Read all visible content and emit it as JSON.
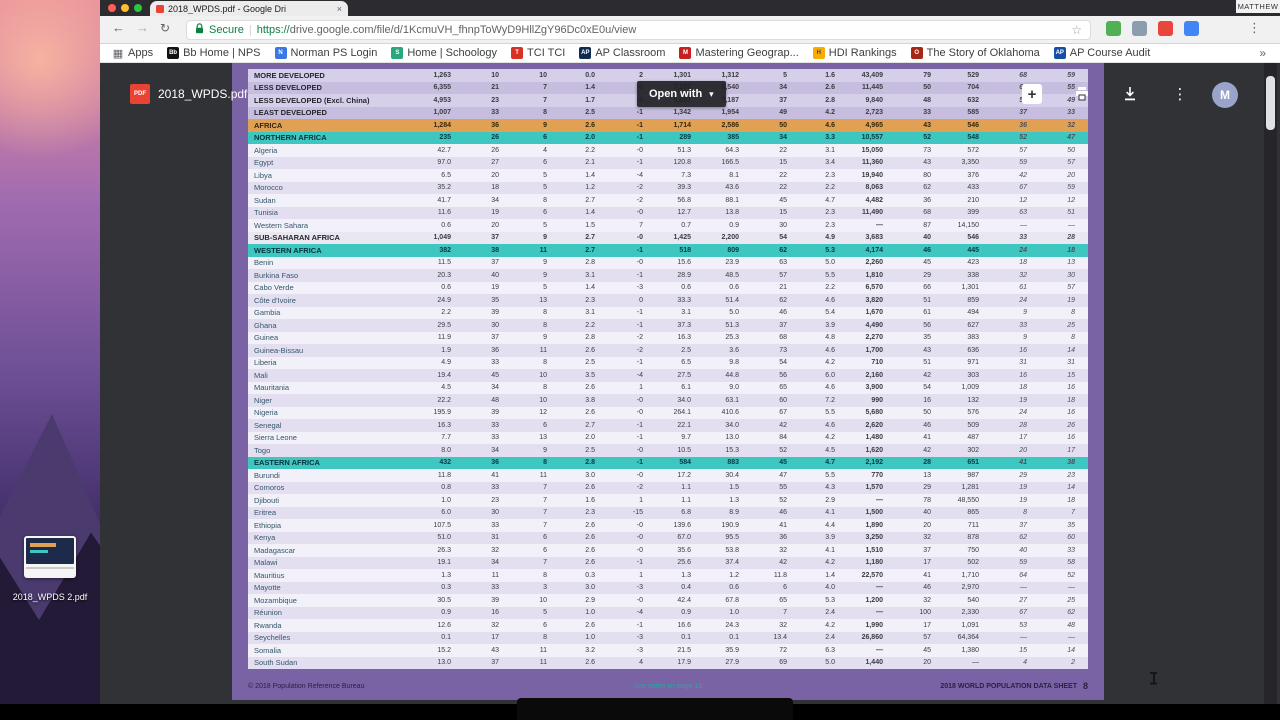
{
  "menubar": {
    "user": "MATTHEW"
  },
  "browser": {
    "tab": {
      "title": "2018_WPDS.pdf - Google Dri",
      "close_glyph": "×"
    },
    "nav": {
      "back": "←",
      "forward": "→",
      "reload": "↻"
    },
    "address": {
      "secure_label": "Secure",
      "separator": "|",
      "url_scheme": "https://",
      "url": "drive.google.com/file/d/1KcmuVH_fhnpToWyD9HllZgY96Dc0xE0u/view",
      "star_glyph": "☆"
    },
    "extensions": [
      {
        "name": "extension-icon-green",
        "color": "#50b154"
      },
      {
        "name": "extension-icon-gray",
        "color": "#8d9db0"
      },
      {
        "name": "extension-icon-red",
        "color": "#e8453c"
      },
      {
        "name": "extension-icon-blue",
        "color": "#4285f4"
      }
    ],
    "menu_dots": "⋮",
    "bookmarks": [
      {
        "label": "Apps",
        "icon": "apps-grid-icon",
        "color": "transparent",
        "glyph": "▦",
        "fg": "#5f6368"
      },
      {
        "label": "Bb Home | NPS",
        "icon": "blackboard-icon",
        "color": "#111111",
        "glyph": "Bb",
        "fg": "#ffffff"
      },
      {
        "label": "Norman PS Login",
        "icon": "norman-ps-icon",
        "color": "#3b78e7",
        "glyph": "N",
        "fg": "#ffffff"
      },
      {
        "label": "Home | Schoology",
        "icon": "schoology-icon",
        "color": "#29a87c",
        "glyph": "S",
        "fg": "#ffffff"
      },
      {
        "label": "TCI TCI",
        "icon": "tci-icon",
        "color": "#d93025",
        "glyph": "T",
        "fg": "#ffffff"
      },
      {
        "label": "AP Classroom",
        "icon": "ap-classroom-icon",
        "color": "#0f2d52",
        "glyph": "AP",
        "fg": "#ffffff"
      },
      {
        "label": "Mastering Geograp...",
        "icon": "mastering-geography-icon",
        "color": "#c5221f",
        "glyph": "M",
        "fg": "#ffffff"
      },
      {
        "label": "HDI Rankings",
        "icon": "hdi-rankings-icon",
        "color": "#f9ab00",
        "glyph": "H",
        "fg": "#174ea6"
      },
      {
        "label": "The Story of Oklahoma",
        "icon": "story-of-oklahoma-icon",
        "color": "#a52714",
        "glyph": "O",
        "fg": "#ffffff"
      },
      {
        "label": "AP Course Audit",
        "icon": "ap-course-audit-icon",
        "color": "#174ea6",
        "glyph": "AP",
        "fg": "#ffffff"
      }
    ],
    "overflow_chevron": "»"
  },
  "viewer": {
    "filename": "2018_WPDS.pdf",
    "pdf_badge": "PDF",
    "open_with_label": "Open with",
    "open_with_caret": "▾",
    "more_dots": "⋮",
    "avatar_letter": "M",
    "icons": [
      "add-box-icon",
      "print-icon",
      "download-icon",
      "more-options-icon"
    ]
  },
  "document": {
    "footer": {
      "left": "© 2018 Population Reference Bureau",
      "center": "See notes on page 18",
      "right": "2018 WORLD POPULATION DATA SHEET",
      "page": "8"
    },
    "rows": [
      {
        "name": "MORE DEVELOPED",
        "style": "dev",
        "values": [
          "1,263",
          "10",
          "10",
          "0.0",
          "2",
          "1,301",
          "1,312",
          "5",
          "1.6",
          "43,409",
          "79",
          "529",
          "68",
          "59"
        ]
      },
      {
        "name": "LESS DEVELOPED",
        "style": "dev",
        "values": [
          "6,355",
          "21",
          "7",
          "1.4",
          "-0",
          "7,257",
          "8,540",
          "34",
          "2.6",
          "11,445",
          "50",
          "704",
          "62",
          "55"
        ]
      },
      {
        "name": "LESS DEVELOPED (Excl. China)",
        "style": "dev",
        "values": [
          "4,953",
          "23",
          "7",
          "1.7",
          "-0",
          "5,887",
          "7,187",
          "37",
          "2.8",
          "9,840",
          "48",
          "632",
          "56",
          "49"
        ]
      },
      {
        "name": "LEAST DEVELOPED",
        "style": "dev",
        "values": [
          "1,007",
          "33",
          "8",
          "2.5",
          "-1",
          "1,342",
          "1,954",
          "49",
          "4.2",
          "2,723",
          "33",
          "585",
          "37",
          "33"
        ]
      },
      {
        "name": "AFRICA",
        "style": "africa",
        "values": [
          "1,284",
          "36",
          "9",
          "2.6",
          "-1",
          "1,714",
          "2,586",
          "50",
          "4.6",
          "4,965",
          "43",
          "546",
          "36",
          "32"
        ]
      },
      {
        "name": "NORTHERN AFRICA",
        "style": "region",
        "values": [
          "235",
          "26",
          "6",
          "2.0",
          "-1",
          "289",
          "385",
          "34",
          "3.3",
          "10,557",
          "52",
          "548",
          "52",
          "47"
        ]
      },
      {
        "name": "Algeria",
        "values": [
          "42.7",
          "26",
          "4",
          "2.2",
          "-0",
          "51.3",
          "64.3",
          "22",
          "3.1",
          "15,050",
          "73",
          "572",
          "57",
          "50"
        ]
      },
      {
        "name": "Egypt",
        "values": [
          "97.0",
          "27",
          "6",
          "2.1",
          "-1",
          "120.8",
          "166.5",
          "15",
          "3.4",
          "11,360",
          "43",
          "3,350",
          "59",
          "57"
        ]
      },
      {
        "name": "Libya",
        "values": [
          "6.5",
          "20",
          "5",
          "1.4",
          "-4",
          "7.3",
          "8.1",
          "22",
          "2.3",
          "19,940",
          "80",
          "376",
          "42",
          "20"
        ]
      },
      {
        "name": "Morocco",
        "values": [
          "35.2",
          "18",
          "5",
          "1.2",
          "-2",
          "39.3",
          "43.6",
          "22",
          "2.2",
          "8,063",
          "62",
          "433",
          "67",
          "59"
        ]
      },
      {
        "name": "Sudan",
        "values": [
          "41.7",
          "34",
          "8",
          "2.7",
          "-2",
          "56.8",
          "88.1",
          "45",
          "4.7",
          "4,482",
          "36",
          "210",
          "12",
          "12"
        ]
      },
      {
        "name": "Tunisia",
        "values": [
          "11.6",
          "19",
          "6",
          "1.4",
          "-0",
          "12.7",
          "13.8",
          "15",
          "2.3",
          "11,490",
          "68",
          "399",
          "63",
          "51"
        ]
      },
      {
        "name": "Western Sahara",
        "values": [
          "0.6",
          "20",
          "5",
          "1.5",
          "7",
          "0.7",
          "0.9",
          "30",
          "2.3",
          "—",
          "87",
          "14,150",
          "—",
          "—"
        ]
      },
      {
        "name": "SUB-SAHARAN AFRICA",
        "style": "subsah",
        "values": [
          "1,049",
          "37",
          "9",
          "2.7",
          "-0",
          "1,425",
          "2,200",
          "54",
          "4.9",
          "3,683",
          "40",
          "546",
          "33",
          "28"
        ]
      },
      {
        "name": "WESTERN AFRICA",
        "style": "region",
        "values": [
          "382",
          "38",
          "11",
          "2.7",
          "-1",
          "518",
          "809",
          "62",
          "5.3",
          "4,174",
          "46",
          "445",
          "24",
          "18"
        ]
      },
      {
        "name": "Benin",
        "values": [
          "11.5",
          "37",
          "9",
          "2.8",
          "-0",
          "15.6",
          "23.9",
          "63",
          "5.0",
          "2,260",
          "45",
          "423",
          "18",
          "13"
        ]
      },
      {
        "name": "Burkina Faso",
        "values": [
          "20.3",
          "40",
          "9",
          "3.1",
          "-1",
          "28.9",
          "48.5",
          "57",
          "5.5",
          "1,810",
          "29",
          "338",
          "32",
          "30"
        ]
      },
      {
        "name": "Cabo Verde",
        "values": [
          "0.6",
          "19",
          "5",
          "1.4",
          "-3",
          "0.6",
          "0.6",
          "21",
          "2.2",
          "6,570",
          "66",
          "1,301",
          "61",
          "57"
        ]
      },
      {
        "name": "Côte d'Ivoire",
        "values": [
          "24.9",
          "35",
          "13",
          "2.3",
          "0",
          "33.3",
          "51.4",
          "62",
          "4.6",
          "3,820",
          "51",
          "859",
          "24",
          "19"
        ]
      },
      {
        "name": "Gambia",
        "values": [
          "2.2",
          "39",
          "8",
          "3.1",
          "-1",
          "3.1",
          "5.0",
          "46",
          "5.4",
          "1,670",
          "61",
          "494",
          "9",
          "8"
        ]
      },
      {
        "name": "Ghana",
        "values": [
          "29.5",
          "30",
          "8",
          "2.2",
          "-1",
          "37.3",
          "51.3",
          "37",
          "3.9",
          "4,490",
          "56",
          "627",
          "33",
          "25"
        ]
      },
      {
        "name": "Guinea",
        "values": [
          "11.9",
          "37",
          "9",
          "2.8",
          "-2",
          "16.3",
          "25.3",
          "68",
          "4.8",
          "2,270",
          "35",
          "383",
          "9",
          "8"
        ]
      },
      {
        "name": "Guinea-Bissau",
        "values": [
          "1.9",
          "36",
          "11",
          "2.6",
          "-2",
          "2.5",
          "3.6",
          "73",
          "4.6",
          "1,700",
          "43",
          "636",
          "16",
          "14"
        ]
      },
      {
        "name": "Liberia",
        "values": [
          "4.9",
          "33",
          "8",
          "2.5",
          "-1",
          "6.5",
          "9.8",
          "54",
          "4.2",
          "710",
          "51",
          "971",
          "31",
          "31"
        ]
      },
      {
        "name": "Mali",
        "values": [
          "19.4",
          "45",
          "10",
          "3.5",
          "-4",
          "27.5",
          "44.8",
          "56",
          "6.0",
          "2,160",
          "42",
          "303",
          "16",
          "15"
        ]
      },
      {
        "name": "Mauritania",
        "values": [
          "4.5",
          "34",
          "8",
          "2.6",
          "1",
          "6.1",
          "9.0",
          "65",
          "4.6",
          "3,900",
          "54",
          "1,009",
          "18",
          "16"
        ]
      },
      {
        "name": "Niger",
        "values": [
          "22.2",
          "48",
          "10",
          "3.8",
          "-0",
          "34.0",
          "63.1",
          "60",
          "7.2",
          "990",
          "16",
          "132",
          "19",
          "18"
        ]
      },
      {
        "name": "Nigeria",
        "values": [
          "195.9",
          "39",
          "12",
          "2.6",
          "-0",
          "264.1",
          "410.6",
          "67",
          "5.5",
          "5,680",
          "50",
          "576",
          "24",
          "16"
        ]
      },
      {
        "name": "Senegal",
        "values": [
          "16.3",
          "33",
          "6",
          "2.7",
          "-1",
          "22.1",
          "34.0",
          "42",
          "4.6",
          "2,620",
          "46",
          "509",
          "28",
          "26"
        ]
      },
      {
        "name": "Sierra Leone",
        "values": [
          "7.7",
          "33",
          "13",
          "2.0",
          "-1",
          "9.7",
          "13.0",
          "84",
          "4.2",
          "1,480",
          "41",
          "487",
          "17",
          "16"
        ]
      },
      {
        "name": "Togo",
        "values": [
          "8.0",
          "34",
          "9",
          "2.5",
          "-0",
          "10.5",
          "15.3",
          "52",
          "4.5",
          "1,620",
          "42",
          "302",
          "20",
          "17"
        ]
      },
      {
        "name": "EASTERN AFRICA",
        "style": "region",
        "values": [
          "432",
          "36",
          "8",
          "2.8",
          "-1",
          "584",
          "883",
          "45",
          "4.7",
          "2,192",
          "28",
          "651",
          "41",
          "38"
        ]
      },
      {
        "name": "Burundi",
        "values": [
          "11.8",
          "41",
          "11",
          "3.0",
          "-0",
          "17.2",
          "30.4",
          "47",
          "5.5",
          "770",
          "13",
          "987",
          "29",
          "23"
        ]
      },
      {
        "name": "Comoros",
        "values": [
          "0.8",
          "33",
          "7",
          "2.6",
          "-2",
          "1.1",
          "1.5",
          "55",
          "4.3",
          "1,570",
          "29",
          "1,281",
          "19",
          "14"
        ]
      },
      {
        "name": "Djibouti",
        "values": [
          "1.0",
          "23",
          "7",
          "1.6",
          "1",
          "1.1",
          "1.3",
          "52",
          "2.9",
          "—",
          "78",
          "48,550",
          "19",
          "18"
        ]
      },
      {
        "name": "Eritrea",
        "values": [
          "6.0",
          "30",
          "7",
          "2.3",
          "-15",
          "6.8",
          "8.9",
          "46",
          "4.1",
          "1,500",
          "40",
          "865",
          "8",
          "7"
        ]
      },
      {
        "name": "Ethiopia",
        "values": [
          "107.5",
          "33",
          "7",
          "2.6",
          "-0",
          "139.6",
          "190.9",
          "41",
          "4.4",
          "1,890",
          "20",
          "711",
          "37",
          "35"
        ]
      },
      {
        "name": "Kenya",
        "values": [
          "51.0",
          "31",
          "6",
          "2.6",
          "-0",
          "67.0",
          "95.5",
          "36",
          "3.9",
          "3,250",
          "32",
          "878",
          "62",
          "60"
        ]
      },
      {
        "name": "Madagascar",
        "values": [
          "26.3",
          "32",
          "6",
          "2.6",
          "-0",
          "35.6",
          "53.8",
          "32",
          "4.1",
          "1,510",
          "37",
          "750",
          "40",
          "33"
        ]
      },
      {
        "name": "Malawi",
        "values": [
          "19.1",
          "34",
          "7",
          "2.6",
          "-1",
          "25.6",
          "37.4",
          "42",
          "4.2",
          "1,180",
          "17",
          "502",
          "59",
          "58"
        ]
      },
      {
        "name": "Mauritius",
        "values": [
          "1.3",
          "11",
          "8",
          "0.3",
          "1",
          "1.3",
          "1.2",
          "11.8",
          "1.4",
          "22,570",
          "41",
          "1,710",
          "64",
          "52"
        ]
      },
      {
        "name": "Mayotte",
        "values": [
          "0.3",
          "33",
          "3",
          "3.0",
          "-3",
          "0.4",
          "0.6",
          "6",
          "4.0",
          "—",
          "46",
          "2,970",
          "—",
          "—"
        ]
      },
      {
        "name": "Mozambique",
        "values": [
          "30.5",
          "39",
          "10",
          "2.9",
          "-0",
          "42.4",
          "67.8",
          "65",
          "5.3",
          "1,200",
          "32",
          "540",
          "27",
          "25"
        ]
      },
      {
        "name": "Réunion",
        "values": [
          "0.9",
          "16",
          "5",
          "1.0",
          "-4",
          "0.9",
          "1.0",
          "7",
          "2.4",
          "—",
          "100",
          "2,330",
          "67",
          "62"
        ]
      },
      {
        "name": "Rwanda",
        "values": [
          "12.6",
          "32",
          "6",
          "2.6",
          "-1",
          "16.6",
          "24.3",
          "32",
          "4.2",
          "1,990",
          "17",
          "1,091",
          "53",
          "48"
        ]
      },
      {
        "name": "Seychelles",
        "values": [
          "0.1",
          "17",
          "8",
          "1.0",
          "-3",
          "0.1",
          "0.1",
          "13.4",
          "2.4",
          "26,860",
          "57",
          "64,364",
          "—",
          "—"
        ]
      },
      {
        "name": "Somalia",
        "values": [
          "15.2",
          "43",
          "11",
          "3.2",
          "-3",
          "21.5",
          "35.9",
          "72",
          "6.3",
          "—",
          "45",
          "1,380",
          "15",
          "14"
        ]
      },
      {
        "name": "South Sudan",
        "values": [
          "13.0",
          "37",
          "11",
          "2.6",
          "4",
          "17.9",
          "27.9",
          "69",
          "5.0",
          "1,440",
          "20",
          "—",
          "4",
          "2"
        ]
      }
    ]
  },
  "desktop": {
    "file_label": "2018_WPDS 2.pdf"
  },
  "colors": {
    "page_purple": "#7a63a5",
    "region_teal": "#3ec6c0",
    "africa_orange": "#e0a155",
    "secure_green": "#0b8043",
    "pdf_red": "#ea4335"
  }
}
